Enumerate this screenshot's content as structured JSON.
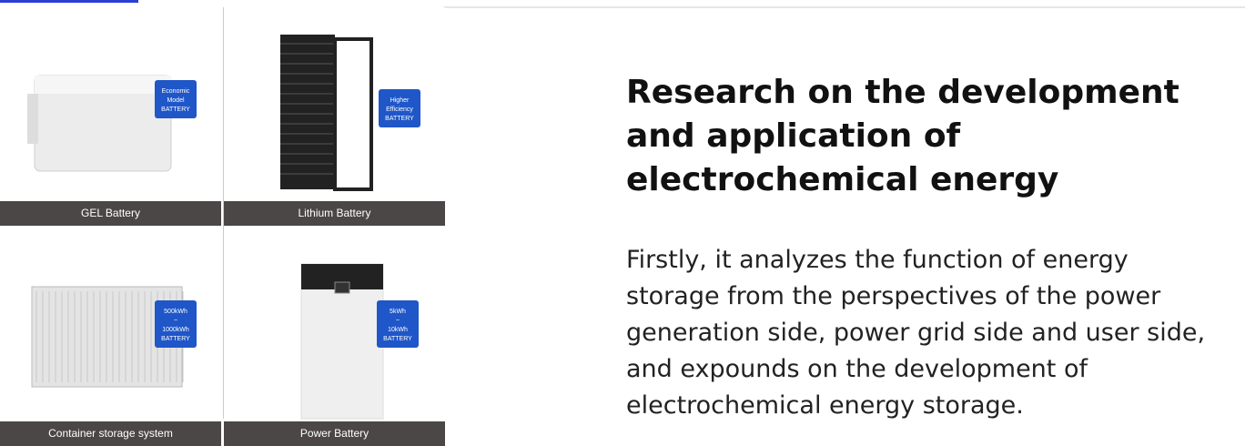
{
  "tiles": [
    {
      "label": "GEL Battery",
      "badge": [
        "Economic",
        "Model",
        "BATTERY"
      ]
    },
    {
      "label": "Lithium Battery",
      "badge": [
        "Higher",
        "Efficiency",
        "BATTERY"
      ]
    },
    {
      "label": "Container storage system",
      "badge": [
        "500kWh",
        "~",
        "1000kWh",
        "BATTERY"
      ]
    },
    {
      "label": "Power Battery",
      "badge": [
        "5kWh",
        "~",
        "10kWh",
        "BATTERY"
      ]
    }
  ],
  "article": {
    "title": "Research on the development and application of electrochemical energy",
    "body": "Firstly, it analyzes the function of energy storage from the perspectives of the power generation side, power grid side and user side, and expounds on the development of electrochemical energy storage."
  }
}
